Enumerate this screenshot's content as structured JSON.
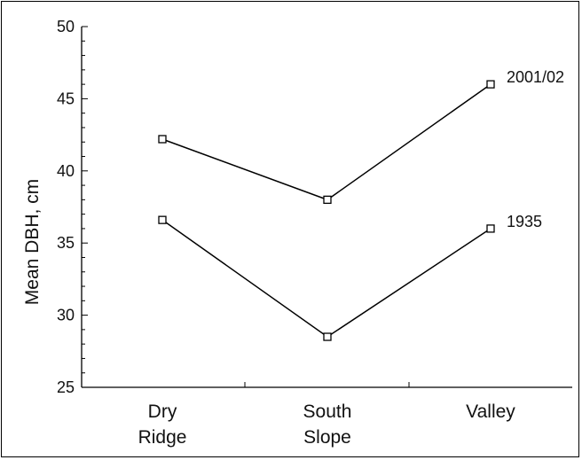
{
  "chart_data": {
    "type": "line",
    "categories": [
      [
        "Dry",
        "Ridge"
      ],
      [
        "South",
        "Slope"
      ],
      [
        "Valley"
      ]
    ],
    "series": [
      {
        "name": "2001/02",
        "values": [
          42.2,
          38.0,
          46.0
        ]
      },
      {
        "name": "1935",
        "values": [
          36.6,
          28.5,
          36.0
        ]
      }
    ],
    "ylabel": "Mean DBH, cm",
    "ylim": [
      25,
      50
    ],
    "y_ticks": [
      25,
      30,
      35,
      40,
      45,
      50
    ],
    "grid": false,
    "line_color": "#000000",
    "marker": "open-square"
  }
}
